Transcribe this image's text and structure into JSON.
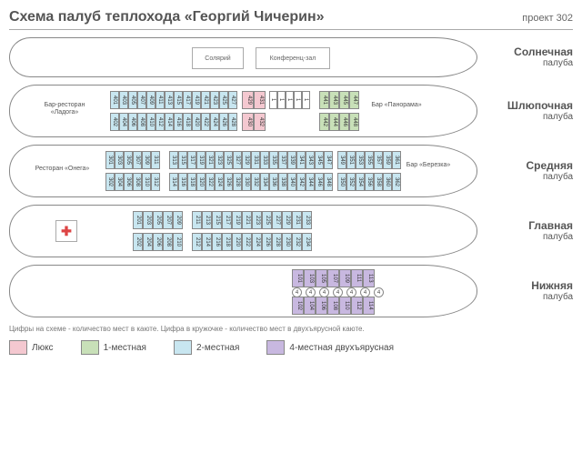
{
  "header": {
    "title": "Схема палуб теплохода «Георгий Чичерин»",
    "project": "проект 302"
  },
  "decks": [
    {
      "name": "Солнечная",
      "sub": "палуба"
    },
    {
      "name": "Шлюпочная",
      "sub": "палуба"
    },
    {
      "name": "Средняя",
      "sub": "палуба"
    },
    {
      "name": "Главная",
      "sub": "палуба"
    },
    {
      "name": "Нижняя",
      "sub": "палуба"
    }
  ],
  "sunRooms": {
    "solarium": "Солярий",
    "conf": "Конференц-зал"
  },
  "boatDeck": {
    "barLadoga": "Бар-ресторан\n«Ладога»",
    "barPanorama": "Бар\n«Панорама»",
    "topRow": [
      "401",
      "403",
      "405",
      "407",
      "409",
      "411",
      "413",
      "415",
      "417",
      "419",
      "421",
      "423",
      "425",
      "427"
    ],
    "botRow": [
      "402",
      "404",
      "406",
      "408",
      "410",
      "412",
      "414",
      "416",
      "418",
      "420",
      "422",
      "424",
      "426",
      "428"
    ],
    "pinkTop": [
      "429",
      "431"
    ],
    "pinkBot": [
      "430",
      "432"
    ],
    "whiteStrip": [
      "1",
      "1",
      "1",
      "1",
      "1"
    ],
    "greenTop": [
      "441",
      "443",
      "445",
      "447"
    ],
    "greenBot": [
      "442",
      "444",
      "446",
      "448"
    ]
  },
  "middleDeck": {
    "restaurant": "Ресторан «Онега»",
    "barBerezka": "Бар\n«Березка»",
    "top1": [
      "301",
      "303",
      "305",
      "307",
      "309",
      "311"
    ],
    "bot1": [
      "302",
      "304",
      "306",
      "308",
      "310",
      "312"
    ],
    "top2": [
      "313",
      "315",
      "317",
      "319",
      "321",
      "323",
      "325",
      "327",
      "329",
      "331",
      "333",
      "335",
      "337",
      "339",
      "341",
      "343",
      "345",
      "347"
    ],
    "bot2": [
      "314",
      "316",
      "318",
      "320",
      "322",
      "324",
      "326",
      "328",
      "330",
      "332",
      "334",
      "336",
      "338",
      "340",
      "342",
      "344",
      "346",
      "348"
    ],
    "top3": [
      "349",
      "351",
      "353",
      "355",
      "357",
      "359",
      "361"
    ],
    "bot3": [
      "350",
      "352",
      "354",
      "356",
      "358",
      "360",
      "362"
    ]
  },
  "mainDeck": {
    "top1": [
      "201",
      "203",
      "205",
      "207",
      "209"
    ],
    "bot1": [
      "202",
      "204",
      "206",
      "208",
      "210"
    ],
    "top2": [
      "211",
      "213",
      "215",
      "217",
      "219",
      "221",
      "223",
      "225",
      "227",
      "229",
      "231",
      "233"
    ],
    "bot2": [
      "212",
      "214",
      "216",
      "218",
      "220",
      "222",
      "224",
      "226",
      "228",
      "230",
      "232",
      "234"
    ]
  },
  "lowerDeck": {
    "top": [
      "101",
      "103",
      "105",
      "107",
      "109",
      "111",
      "113"
    ],
    "bot": [
      "102",
      "104",
      "106",
      "108",
      "110",
      "112",
      "114"
    ],
    "circles": [
      "4",
      "4",
      "4",
      "4",
      "4",
      "4",
      "4"
    ]
  },
  "footnote": "Цифры на схеме - количество мест в каюте. Цифра в кружочке - количество мест в двухъярусной каюте.",
  "legend": [
    {
      "color": "#f4c8d0",
      "label": "Люкс"
    },
    {
      "color": "#c8e0b8",
      "label": "1-местная"
    },
    {
      "color": "#c8e6f0",
      "label": "2-местная"
    },
    {
      "color": "#c8b8e0",
      "label": "4-местная двухъярусная"
    }
  ]
}
